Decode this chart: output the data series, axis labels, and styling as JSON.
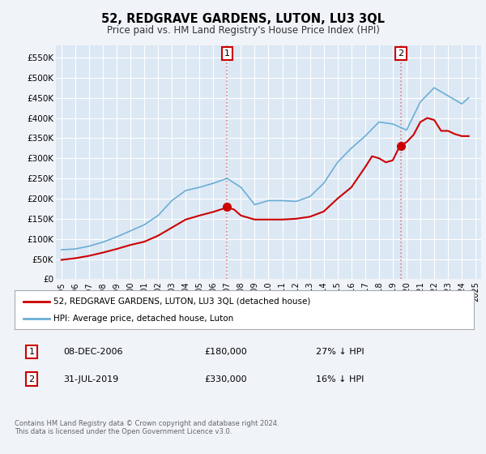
{
  "title": "52, REDGRAVE GARDENS, LUTON, LU3 3QL",
  "subtitle": "Price paid vs. HM Land Registry's House Price Index (HPI)",
  "background_color": "#f0f4f8",
  "plot_bg_color": "#dce8f4",
  "yticks": [
    0,
    50000,
    100000,
    150000,
    200000,
    250000,
    300000,
    350000,
    400000,
    450000,
    500000,
    550000
  ],
  "ylim": [
    0,
    580000
  ],
  "xlim": [
    1994.6,
    2025.4
  ],
  "transaction1": {
    "date_label": "08-DEC-2006",
    "date_num": 2007.0,
    "price": 180000,
    "label": "27% ↓ HPI"
  },
  "transaction2": {
    "date_label": "31-JUL-2019",
    "date_num": 2019.6,
    "price": 330000,
    "label": "16% ↓ HPI"
  },
  "legend_line1": "52, REDGRAVE GARDENS, LUTON, LU3 3QL (detached house)",
  "legend_line2": "HPI: Average price, detached house, Luton",
  "footnote": "Contains HM Land Registry data © Crown copyright and database right 2024.\nThis data is licensed under the Open Government Licence v3.0.",
  "hpi_line_color": "#6baed6",
  "price_line_color": "#cc0000",
  "marker_color": "#cc0000",
  "dashed_line_color": "#e08080",
  "hpi_data_years": [
    1995,
    1996,
    1997,
    1998,
    1999,
    2000,
    2001,
    2002,
    2003,
    2004,
    2005,
    2006,
    2007,
    2008,
    2009,
    2010,
    2011,
    2012,
    2013,
    2014,
    2015,
    2016,
    2017,
    2018,
    2019,
    2020,
    2021,
    2022,
    2023,
    2024,
    2024.5
  ],
  "hpi_data_vals": [
    73000,
    75000,
    82000,
    92000,
    105000,
    120000,
    135000,
    158000,
    195000,
    220000,
    228000,
    238000,
    250000,
    228000,
    185000,
    195000,
    195000,
    193000,
    205000,
    238000,
    290000,
    325000,
    355000,
    390000,
    385000,
    370000,
    440000,
    475000,
    455000,
    435000,
    450000
  ],
  "price_data_years": [
    1995,
    1996,
    1997,
    1998,
    1999,
    2000,
    2001,
    2002,
    2003,
    2004,
    2005,
    2006,
    2007,
    2007.5,
    2008,
    2009,
    2010,
    2011,
    2012,
    2013,
    2014,
    2015,
    2016,
    2017,
    2017.5,
    2018,
    2018.5,
    2019,
    2019.5,
    2020,
    2020.5,
    2021,
    2021.5,
    2022,
    2022.5,
    2023,
    2023.5,
    2024,
    2024.5
  ],
  "price_data_vals": [
    48000,
    52000,
    58000,
    66000,
    75000,
    85000,
    93000,
    108000,
    128000,
    148000,
    158000,
    167000,
    178000,
    173000,
    158000,
    148000,
    148000,
    148000,
    150000,
    155000,
    168000,
    200000,
    228000,
    278000,
    305000,
    300000,
    290000,
    295000,
    330000,
    340000,
    358000,
    390000,
    400000,
    395000,
    368000,
    368000,
    360000,
    355000,
    355000
  ]
}
